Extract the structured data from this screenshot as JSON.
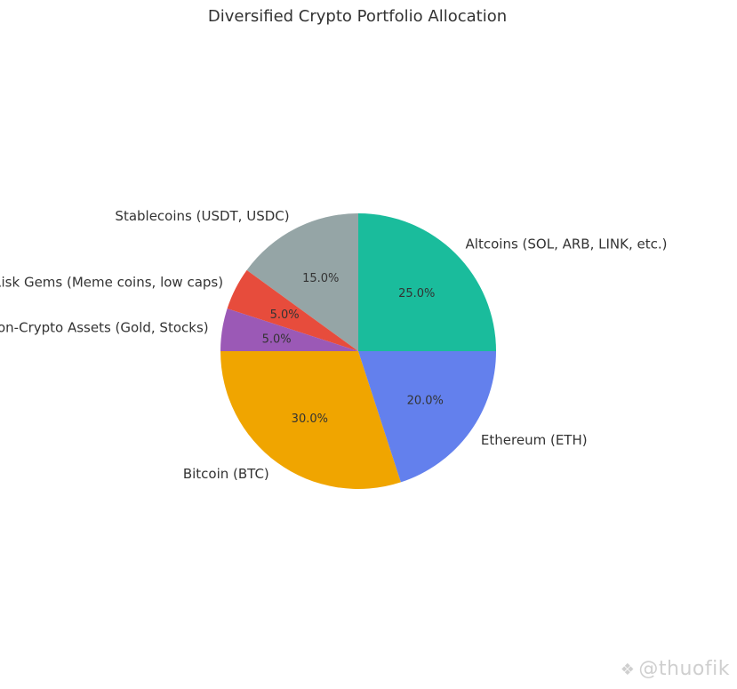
{
  "chart_data": {
    "type": "pie",
    "title": "Diversified Crypto Portfolio Allocation",
    "start_angle_deg": 90,
    "direction": "counterclockwise",
    "slices": [
      {
        "label": "Stablecoins (USDT, USDC)",
        "value": 15.0,
        "pct_label": "15.0%",
        "color": "#95a5a6"
      },
      {
        "label": "High-Risk Gems (Meme coins, low caps)",
        "value": 5.0,
        "pct_label": "5.0%",
        "color": "#e74c3c"
      },
      {
        "label": "Non-Crypto Assets (Gold, Stocks)",
        "value": 5.0,
        "pct_label": "5.0%",
        "color": "#9b59b6"
      },
      {
        "label": "Bitcoin (BTC)",
        "value": 30.0,
        "pct_label": "30.0%",
        "color": "#f0a500"
      },
      {
        "label": "Ethereum (ETH)",
        "value": 20.0,
        "pct_label": "20.0%",
        "color": "#6380ed"
      },
      {
        "label": "Altcoins (SOL, ARB, LINK, etc.)",
        "value": 25.0,
        "pct_label": "25.0%",
        "color": "#1abc9c"
      }
    ]
  },
  "watermark": {
    "text": "@thuofik",
    "icon": "exchange-logo-icon"
  }
}
